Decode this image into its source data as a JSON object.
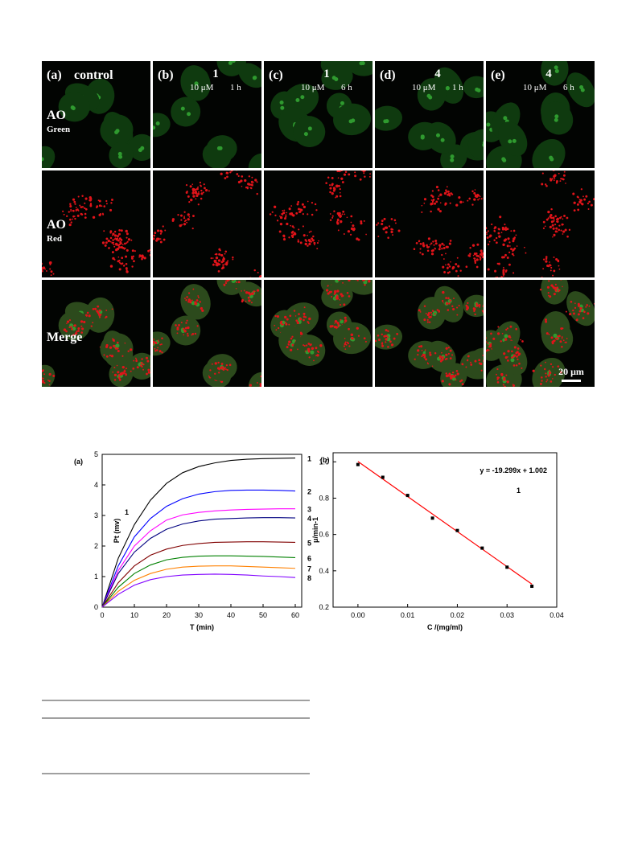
{
  "figure": {
    "columns": [
      {
        "label": "(a)",
        "compound": "control"
      },
      {
        "label": "(b)",
        "compound": "1",
        "concentration": "10 μM",
        "time": "1 h"
      },
      {
        "label": "(c)",
        "compound": "1",
        "concentration": "10 μM",
        "time": "6 h"
      },
      {
        "label": "(d)",
        "compound": "4",
        "concentration": "10 μM",
        "time": "1 h"
      },
      {
        "label": "(e)",
        "compound": "4",
        "concentration": "10 μM",
        "time": "6 h"
      }
    ],
    "rows": [
      {
        "stain": "AO",
        "channel": "Green"
      },
      {
        "stain": "AO",
        "channel": "Red"
      },
      {
        "stain": "Merge"
      }
    ],
    "scale_bar": "20 μm"
  },
  "chart_data": [
    {
      "type": "line",
      "panel": "(a)",
      "annotation": "1",
      "xlabel": "T (min)",
      "ylabel": "Pt (mv)",
      "x": [
        0,
        5,
        10,
        15,
        20,
        25,
        30,
        35,
        40,
        45,
        50,
        55,
        60
      ],
      "xlim": [
        0,
        62
      ],
      "xticks": [
        0,
        10,
        20,
        30,
        40,
        50,
        60
      ],
      "ylim": [
        0,
        5
      ],
      "yticks": [
        0,
        1,
        2,
        3,
        4,
        5
      ],
      "series": [
        {
          "name": "1",
          "color": "#000000",
          "values": [
            0,
            1.6,
            2.7,
            3.5,
            4.05,
            4.4,
            4.6,
            4.72,
            4.8,
            4.84,
            4.86,
            4.87,
            4.88
          ]
        },
        {
          "name": "2",
          "color": "#0000ff",
          "values": [
            0,
            1.35,
            2.3,
            2.9,
            3.3,
            3.55,
            3.7,
            3.78,
            3.82,
            3.83,
            3.83,
            3.82,
            3.8
          ]
        },
        {
          "name": "3",
          "color": "#ff00ff",
          "values": [
            0,
            1.2,
            2.0,
            2.5,
            2.85,
            3.02,
            3.1,
            3.15,
            3.18,
            3.2,
            3.21,
            3.22,
            3.22
          ]
        },
        {
          "name": "4",
          "color": "#000080",
          "values": [
            0,
            1.1,
            1.8,
            2.25,
            2.55,
            2.72,
            2.82,
            2.88,
            2.9,
            2.92,
            2.93,
            2.93,
            2.92
          ]
        },
        {
          "name": "5",
          "color": "#800000",
          "values": [
            0,
            0.8,
            1.35,
            1.7,
            1.9,
            2.02,
            2.08,
            2.12,
            2.13,
            2.14,
            2.14,
            2.13,
            2.12
          ]
        },
        {
          "name": "6",
          "color": "#008000",
          "values": [
            0,
            0.65,
            1.1,
            1.38,
            1.55,
            1.63,
            1.67,
            1.68,
            1.68,
            1.67,
            1.66,
            1.64,
            1.62
          ]
        },
        {
          "name": "7",
          "color": "#ff8000",
          "values": [
            0,
            0.52,
            0.88,
            1.1,
            1.24,
            1.31,
            1.34,
            1.35,
            1.35,
            1.33,
            1.31,
            1.29,
            1.27
          ]
        },
        {
          "name": "8",
          "color": "#8000ff",
          "values": [
            0,
            0.42,
            0.72,
            0.9,
            1.0,
            1.05,
            1.07,
            1.08,
            1.07,
            1.05,
            1.02,
            1.0,
            0.97
          ]
        }
      ]
    },
    {
      "type": "scatter",
      "panel": "(b)",
      "annotation": "1",
      "equation": "y = -19.299x + 1.002",
      "fit": {
        "slope": -19.299,
        "intercept": 1.002,
        "color": "#ff0000"
      },
      "xlabel": "C /(mg/ml)",
      "ylabel": "μ/min-1",
      "color": "#000000",
      "x": [
        0,
        0.005,
        0.01,
        0.015,
        0.02,
        0.025,
        0.03,
        0.035
      ],
      "values": [
        0.985,
        0.915,
        0.815,
        0.69,
        0.622,
        0.525,
        0.42,
        0.315
      ],
      "xlim": [
        -0.005,
        0.04
      ],
      "xticks": [
        {
          "value": 0,
          "label": "0.00"
        },
        0.01,
        0.02,
        0.03,
        0.04
      ],
      "ylim": [
        0.2,
        1.05
      ],
      "yticks": [
        0.2,
        0.4,
        0.6,
        0.8,
        {
          "value": 1,
          "label": "1.0"
        }
      ]
    }
  ]
}
